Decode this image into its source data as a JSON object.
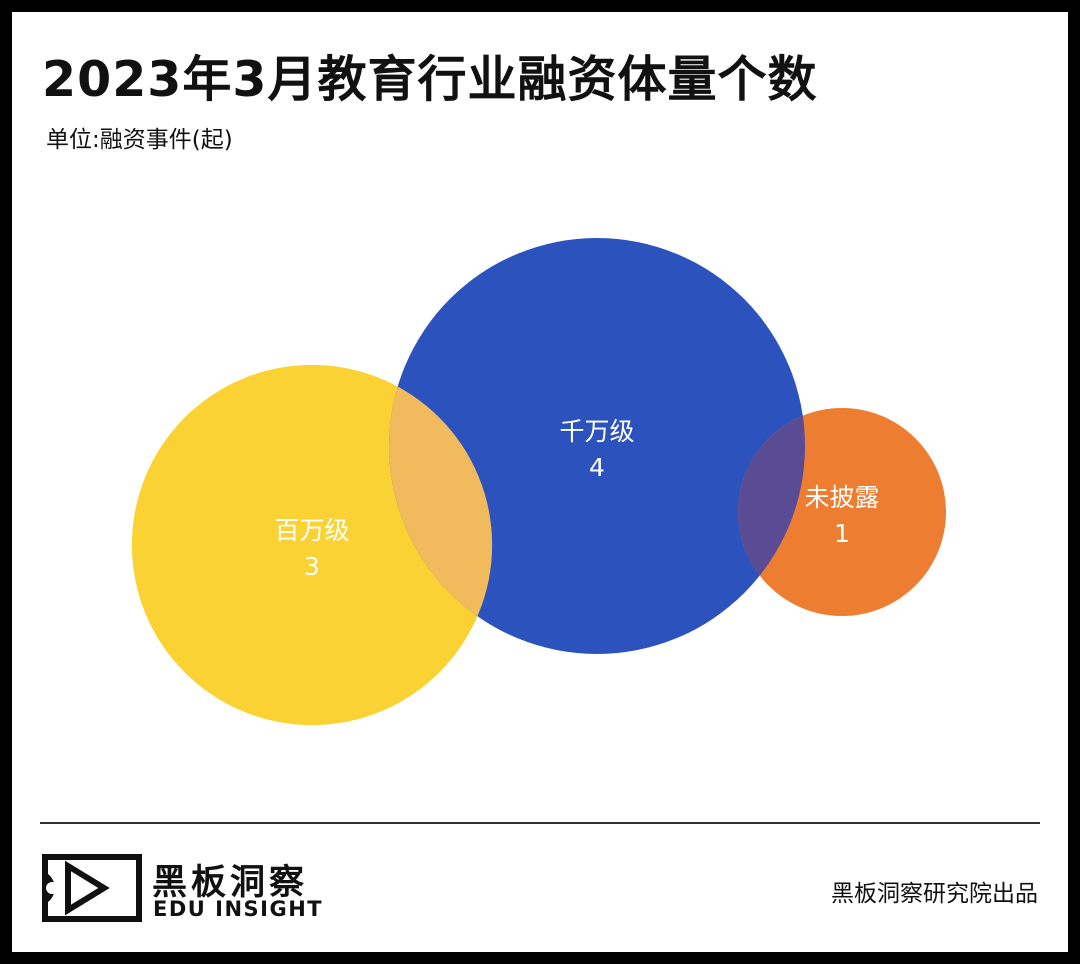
{
  "header": {
    "title": "2023年3月教育行业融资体量个数",
    "unit": "单位:融资事件(起)"
  },
  "chart_data": {
    "type": "bubble",
    "title": "2023年3月教育行业融资体量个数",
    "subtitle": "单位:融资事件(起)",
    "categories": [
      "百万级",
      "千万级",
      "未披露"
    ],
    "values": [
      3,
      4,
      1
    ],
    "colors": [
      "#FAD233",
      "#2C52BE",
      "#ED7D31"
    ],
    "overlap_colors": {
      "百万级+千万级": "#F1BB5D",
      "千万级+未披露": "#594C95"
    }
  },
  "footer": {
    "brand_name": "黑板洞察",
    "brand_en": "EDU INSIGHT",
    "credit": "黑板洞察研究院出品"
  }
}
